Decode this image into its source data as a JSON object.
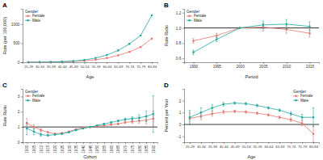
{
  "chart_data": [
    {
      "type": "line",
      "title": "A",
      "x_label": "Age",
      "y_label": "Rate (per 100,000)",
      "categories": [
        "25-29",
        "30-34",
        "35-39",
        "40-44",
        "45-49",
        "50-54",
        "55-59",
        "60-64",
        "65-69",
        "70-74",
        "75-79",
        "80-84"
      ],
      "series": [
        {
          "name": "Female",
          "color": "#e8736c",
          "marker": "circle",
          "values": [
            1,
            2,
            5,
            10,
            20,
            38,
            65,
            110,
            180,
            270,
            400,
            620
          ]
        },
        {
          "name": "Male",
          "color": "#1fa7a0",
          "marker": "circle",
          "values": [
            1,
            3,
            7,
            15,
            32,
            60,
            110,
            190,
            310,
            480,
            700,
            1230
          ]
        }
      ],
      "ylim": [
        0,
        1400
      ],
      "yticks": [
        0,
        500,
        1000
      ],
      "grid": false,
      "legend": "top-left",
      "legend_title": "Gender"
    },
    {
      "type": "line",
      "title": "B",
      "x_label": "Period",
      "y_label": "Rate Ratio",
      "x": [
        1990,
        1995,
        2000,
        2005,
        2010,
        2015
      ],
      "series": [
        {
          "name": "Female",
          "color": "#e8736c",
          "marker": "circle",
          "values": [
            0.83,
            0.9,
            1.0,
            1.01,
            0.98,
            0.93
          ],
          "errors": [
            0.03,
            0.03,
            0,
            0.05,
            0.05,
            0.05
          ]
        },
        {
          "name": "Male",
          "color": "#1fa7a0",
          "marker": "circle",
          "values": [
            0.68,
            0.85,
            1.0,
            1.04,
            1.05,
            1.02
          ],
          "errors": [
            0.03,
            0.03,
            0,
            0.05,
            0.06,
            0.06
          ]
        }
      ],
      "xlim": [
        1988,
        2017
      ],
      "xticks": [
        1990,
        1995,
        2000,
        2005,
        2010,
        2015
      ],
      "ylim": [
        0.55,
        1.25
      ],
      "yticks": [
        {
          "value": 0.6,
          "label": "0.6"
        },
        {
          "value": 0.8,
          "label": "0.8"
        },
        {
          "value": 1,
          "label": "1.0"
        },
        {
          "value": 1.2,
          "label": "1.2"
        }
      ],
      "hline": 1,
      "grid": false,
      "legend": "top-left",
      "legend_title": "Gender"
    },
    {
      "type": "line",
      "title": "C",
      "x_label": "Cohort",
      "y_label": "Rate Ratio",
      "x": [
        1900,
        1905,
        1910,
        1915,
        1920,
        1925,
        1930,
        1935,
        1940,
        1945,
        1950,
        1955,
        1960,
        1965,
        1970,
        1975,
        1980,
        1985,
        1990
      ],
      "series": [
        {
          "name": "Female",
          "color": "#e8736c",
          "marker": "circle",
          "values": [
            1.25,
            1.0,
            0.8,
            0.65,
            0.55,
            0.6,
            0.7,
            0.85,
            0.95,
            1.0,
            1.05,
            1.1,
            1.15,
            1.2,
            1.3,
            1.35,
            1.4,
            1.45,
            1.55
          ],
          "errors": [
            0.3,
            0.15,
            0.08,
            0.05,
            0.04,
            0.03,
            0.02,
            0.02,
            0.01,
            0,
            0.02,
            0.03,
            0.03,
            0.05,
            0.07,
            0.1,
            0.15,
            0.25,
            0.5
          ]
        },
        {
          "name": "Male",
          "color": "#1fa7a0",
          "marker": "circle",
          "values": [
            0.9,
            0.7,
            0.5,
            0.45,
            0.5,
            0.55,
            0.65,
            0.8,
            0.9,
            1.0,
            1.1,
            1.2,
            1.3,
            1.4,
            1.5,
            1.55,
            1.6,
            1.7,
            1.85
          ],
          "errors": [
            0.4,
            0.2,
            0.1,
            0.06,
            0.04,
            0.03,
            0.02,
            0.02,
            0.01,
            0,
            0.02,
            0.03,
            0.04,
            0.06,
            0.08,
            0.12,
            0.2,
            0.35,
            1.2
          ]
        }
      ],
      "xlim": [
        1897,
        1993
      ],
      "xticks": [
        1900,
        1905,
        1910,
        1915,
        1920,
        1925,
        1930,
        1935,
        1940,
        1945,
        1950,
        1955,
        1960,
        1965,
        1970,
        1975,
        1980,
        1985,
        1990
      ],
      "ylim": [
        0,
        3.5
      ],
      "yticks": [
        0,
        1,
        2,
        3
      ],
      "hline": 1,
      "grid": false,
      "legend": "top-left",
      "legend_title": "Gender"
    },
    {
      "type": "line",
      "title": "D",
      "x_label": "Age",
      "y_label": "Percent per Year",
      "categories": [
        "25-29",
        "30-34",
        "35-39",
        "40-44",
        "45-49",
        "50-54",
        "55-59",
        "60-64",
        "65-69",
        "70-74",
        "75-79",
        "80-84"
      ],
      "series": [
        {
          "name": "Female",
          "color": "#e8736c",
          "marker": "circle",
          "values": [
            0.5,
            0.7,
            0.9,
            1.05,
            1.1,
            1.05,
            0.95,
            0.8,
            0.6,
            0.4,
            0.1,
            -0.8
          ],
          "errors": [
            0.5,
            0.3,
            0.2,
            0.15,
            0.1,
            0.1,
            0.1,
            0.1,
            0.1,
            0.15,
            0.2,
            0.7
          ]
        },
        {
          "name": "Male",
          "color": "#1fa7a0",
          "marker": "circle",
          "values": [
            0.6,
            1.0,
            1.4,
            1.7,
            1.8,
            1.75,
            1.6,
            1.4,
            1.2,
            0.9,
            0.6,
            0.6
          ],
          "errors": [
            0.6,
            0.4,
            0.25,
            0.15,
            0.1,
            0.1,
            0.1,
            0.1,
            0.1,
            0.15,
            0.25,
            0.8
          ]
        }
      ],
      "ylim": [
        -1.5,
        3
      ],
      "yticks": [
        -1,
        0,
        1,
        2
      ],
      "hline": 0,
      "grid": false,
      "legend": "top-right",
      "legend_title": "Gender"
    }
  ]
}
